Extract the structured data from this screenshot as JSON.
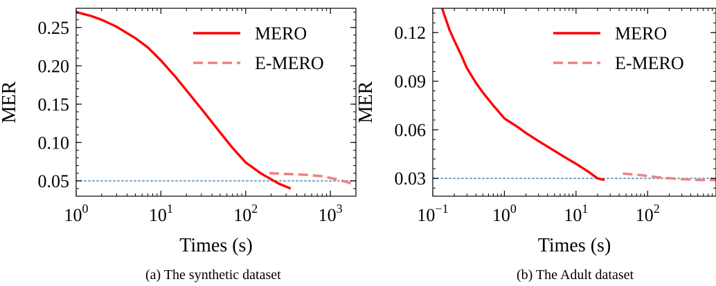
{
  "chart_data": [
    {
      "type": "line",
      "caption": "(a)  The synthetic dataset",
      "xlabel": "Times (s)",
      "ylabel": "MER",
      "xscale": "log",
      "xlim": [
        1,
        2000
      ],
      "ylim": [
        0.03,
        0.275
      ],
      "xticks": [
        {
          "value": 1,
          "base": "10",
          "exp": "0"
        },
        {
          "value": 10,
          "base": "10",
          "exp": "1"
        },
        {
          "value": 100,
          "base": "10",
          "exp": "2"
        },
        {
          "value": 1000,
          "base": "10",
          "exp": "3"
        }
      ],
      "yticks": [
        {
          "value": 0.05,
          "label": "0.05"
        },
        {
          "value": 0.1,
          "label": "0.10"
        },
        {
          "value": 0.15,
          "label": "0.15"
        },
        {
          "value": 0.2,
          "label": "0.20"
        },
        {
          "value": 0.25,
          "label": "0.25"
        }
      ],
      "legend": "top-right",
      "reference_line": {
        "y": 0.05,
        "color": "#7fa6c9"
      },
      "series": [
        {
          "name": "MERO",
          "color": "#ff0000",
          "style": "solid",
          "points": [
            [
              1,
              0.27
            ],
            [
              1.5,
              0.265
            ],
            [
              2,
              0.26
            ],
            [
              3,
              0.251
            ],
            [
              5,
              0.236
            ],
            [
              7,
              0.224
            ],
            [
              10,
              0.207
            ],
            [
              15,
              0.185
            ],
            [
              20,
              0.168
            ],
            [
              30,
              0.144
            ],
            [
              50,
              0.113
            ],
            [
              70,
              0.093
            ],
            [
              100,
              0.074
            ],
            [
              150,
              0.06
            ],
            [
              200,
              0.052
            ],
            [
              250,
              0.046
            ],
            [
              340,
              0.04
            ]
          ]
        },
        {
          "name": "E-MERO",
          "color": "#f28080",
          "style": "dashed",
          "points": [
            [
              190,
              0.06
            ],
            [
              300,
              0.059
            ],
            [
              500,
              0.058
            ],
            [
              800,
              0.056
            ],
            [
              1200,
              0.052
            ],
            [
              1600,
              0.048
            ],
            [
              2000,
              0.045
            ]
          ]
        }
      ]
    },
    {
      "type": "line",
      "caption": "(b)  The Adult dataset",
      "xlabel": "Times (s)",
      "ylabel": "MER",
      "xscale": "log",
      "xlim": [
        0.1,
        900
      ],
      "ylim": [
        0.019,
        0.135
      ],
      "xticks": [
        {
          "value": 0.1,
          "base": "10",
          "exp": "−1"
        },
        {
          "value": 1,
          "base": "10",
          "exp": "0"
        },
        {
          "value": 10,
          "base": "10",
          "exp": "1"
        },
        {
          "value": 100,
          "base": "10",
          "exp": "2"
        }
      ],
      "yticks": [
        {
          "value": 0.03,
          "label": "0.03"
        },
        {
          "value": 0.06,
          "label": "0.06"
        },
        {
          "value": 0.09,
          "label": "0.09"
        },
        {
          "value": 0.12,
          "label": "0.12"
        }
      ],
      "legend": "top-right",
      "reference_line": {
        "y": 0.03,
        "color": "#7fa6c9"
      },
      "series": [
        {
          "name": "MERO",
          "color": "#ff0000",
          "style": "solid",
          "points": [
            [
              0.135,
              0.135
            ],
            [
              0.15,
              0.129
            ],
            [
              0.17,
              0.122
            ],
            [
              0.2,
              0.115
            ],
            [
              0.25,
              0.106
            ],
            [
              0.3,
              0.098
            ],
            [
              0.4,
              0.089
            ],
            [
              0.5,
              0.083
            ],
            [
              0.7,
              0.075
            ],
            [
              1,
              0.067
            ],
            [
              1.5,
              0.062
            ],
            [
              2,
              0.058
            ],
            [
              3,
              0.053
            ],
            [
              5,
              0.047
            ],
            [
              7,
              0.043
            ],
            [
              10,
              0.039
            ],
            [
              15,
              0.034
            ],
            [
              20,
              0.03
            ],
            [
              25,
              0.029
            ]
          ]
        },
        {
          "name": "E-MERO",
          "color": "#f28080",
          "style": "dashed",
          "points": [
            [
              45,
              0.033
            ],
            [
              80,
              0.032
            ],
            [
              150,
              0.0305
            ],
            [
              300,
              0.0295
            ],
            [
              500,
              0.029
            ],
            [
              900,
              0.029
            ]
          ]
        }
      ]
    }
  ]
}
